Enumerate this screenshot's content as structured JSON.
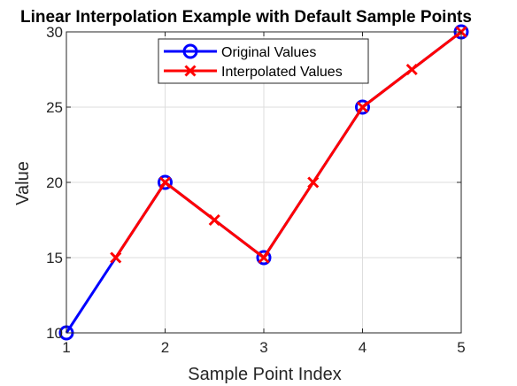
{
  "chart_data": {
    "type": "line",
    "title": "Linear Interpolation Example with Default Sample Points",
    "xlabel": "Sample Point Index",
    "ylabel": "Value",
    "xlim": [
      1,
      5
    ],
    "ylim": [
      10,
      30
    ],
    "xticks": [
      1,
      2,
      3,
      4,
      5
    ],
    "yticks": [
      10,
      15,
      20,
      25,
      30
    ],
    "grid": true,
    "legend_position": "top-center",
    "series": [
      {
        "name": "Original Values",
        "color": "#0000ff",
        "marker": "circle",
        "x": [
          1,
          2,
          3,
          4,
          5
        ],
        "y": [
          10,
          20,
          15,
          25,
          30
        ]
      },
      {
        "name": "Interpolated Values",
        "color": "#ff0000",
        "marker": "x",
        "x": [
          1.5,
          2,
          2.5,
          3,
          3.5,
          4,
          4.5,
          5
        ],
        "y": [
          15,
          20,
          17.5,
          15,
          20,
          25,
          27.5,
          30
        ]
      }
    ]
  }
}
